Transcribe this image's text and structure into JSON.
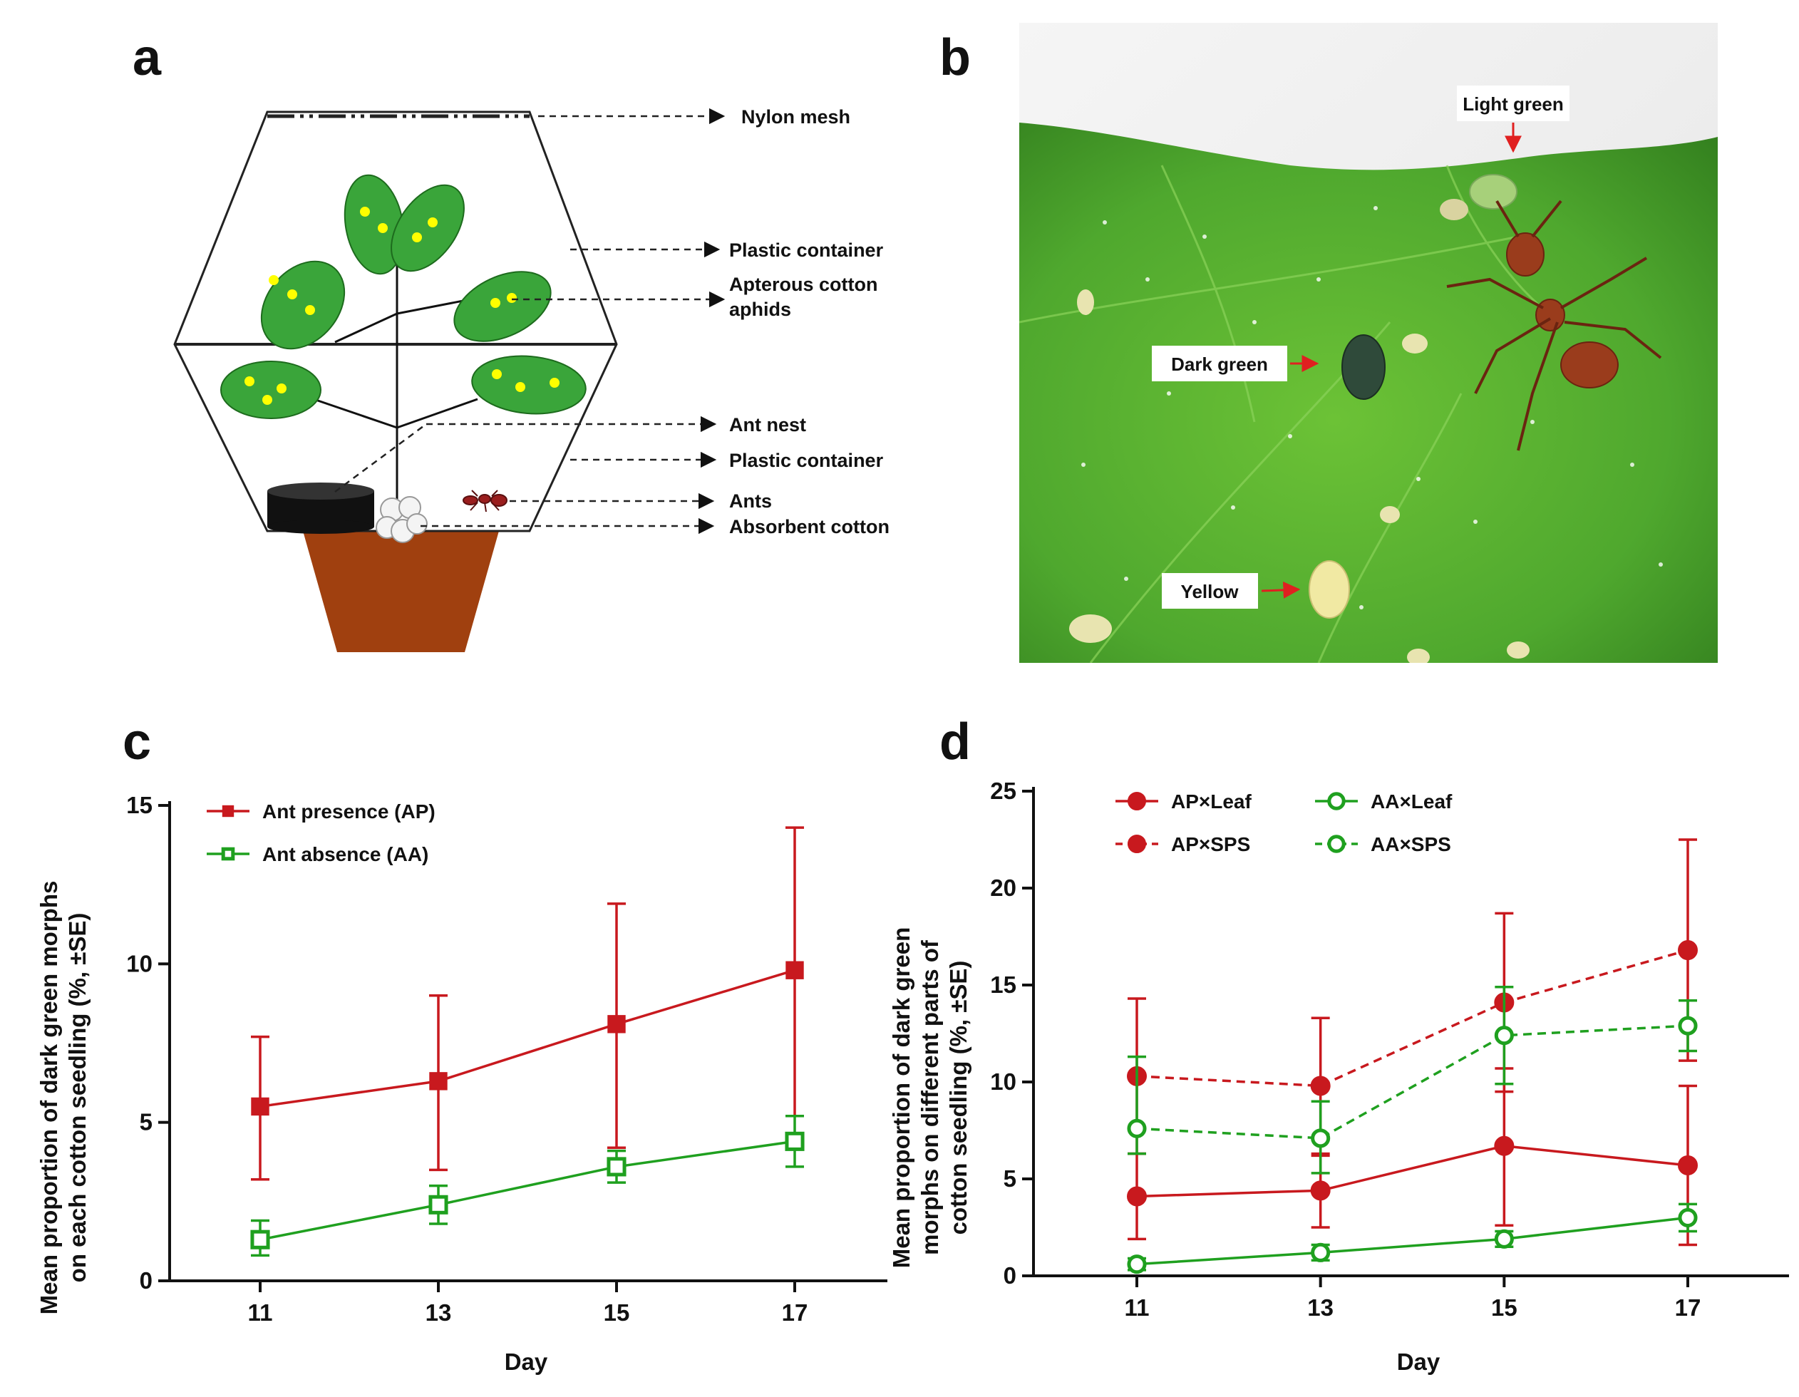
{
  "figure": {
    "panel_labels": {
      "a": "a",
      "b": "b",
      "c": "c",
      "d": "d"
    },
    "panel_a": {
      "labels": {
        "nylon_mesh": "Nylon mesh",
        "plastic_container_top": "Plastic container",
        "aphids_line1": "Apterous cotton",
        "aphids_line2": "aphids",
        "ant_nest": "Ant nest",
        "plastic_container_bottom": "Plastic container",
        "ants": "Ants",
        "absorbent_cotton": "Absorbent cotton"
      },
      "colors": {
        "leaf": "#3aa53a",
        "aphid": "#ffff00",
        "pot": "#a0400f",
        "nest": "#111111"
      }
    },
    "panel_b": {
      "labels": {
        "light_green": "Light green",
        "dark_green": "Dark green",
        "yellow": "Yellow"
      },
      "colors": {
        "leaf": "#4fa82e",
        "arrow": "#e02020"
      }
    }
  },
  "chart_data": [
    {
      "panel": "c",
      "type": "line",
      "xlabel": "Day",
      "ylabel_line1": "Mean proportion of dark green morphs",
      "ylabel_line2": "on each cotton seedling (%, ±SE)",
      "categories": [
        11,
        13,
        15,
        17
      ],
      "ylim": [
        0,
        15
      ],
      "yticks": [
        0,
        5,
        10,
        15
      ],
      "legend_position": "top-left",
      "series": [
        {
          "name": "Ant presence (AP)",
          "color": "#c8191e",
          "marker": "filled-square",
          "dash": "solid",
          "values": [
            5.5,
            6.3,
            8.1,
            9.8
          ],
          "err_low": [
            3.2,
            3.5,
            4.2,
            5.2
          ],
          "err_high": [
            7.7,
            9.0,
            11.9,
            14.3
          ]
        },
        {
          "name": "Ant absence (AA)",
          "color": "#1fa01f",
          "marker": "open-square",
          "dash": "solid",
          "values": [
            1.3,
            2.4,
            3.6,
            4.4
          ],
          "err_low": [
            0.8,
            1.8,
            3.1,
            3.6
          ],
          "err_high": [
            1.9,
            3.0,
            4.1,
            5.2
          ]
        }
      ]
    },
    {
      "panel": "d",
      "type": "line",
      "xlabel": "Day",
      "ylabel_line1": "Mean proportion of dark green",
      "ylabel_line2": "morphs on different parts of",
      "ylabel_line3": "cotton seedling (%, ±SE)",
      "categories": [
        11,
        13,
        15,
        17
      ],
      "ylim": [
        0,
        25
      ],
      "yticks": [
        0,
        5,
        10,
        15,
        20,
        25
      ],
      "legend_position": "top-left",
      "series": [
        {
          "name": "AP×Leaf",
          "color": "#c8191e",
          "marker": "filled-circle",
          "dash": "solid",
          "values": [
            4.1,
            4.4,
            6.7,
            5.7
          ],
          "err_low": [
            1.9,
            2.5,
            2.6,
            1.6
          ],
          "err_high": [
            6.3,
            6.3,
            10.7,
            9.8
          ]
        },
        {
          "name": "AP×SPS",
          "color": "#c8191e",
          "marker": "filled-circle",
          "dash": "dashed",
          "values": [
            10.3,
            9.8,
            14.1,
            16.8
          ],
          "err_low": [
            6.3,
            6.2,
            9.5,
            11.1
          ],
          "err_high": [
            14.3,
            13.3,
            18.7,
            22.5
          ]
        },
        {
          "name": "AA×Leaf",
          "color": "#1fa01f",
          "marker": "open-circle",
          "dash": "solid",
          "values": [
            0.6,
            1.2,
            1.9,
            3.0
          ],
          "err_low": [
            0.3,
            0.8,
            1.5,
            2.3
          ],
          "err_high": [
            0.9,
            1.6,
            2.3,
            3.7
          ]
        },
        {
          "name": "AA×SPS",
          "color": "#1fa01f",
          "marker": "open-circle",
          "dash": "dashed",
          "values": [
            7.6,
            7.1,
            12.4,
            12.9
          ],
          "err_low": [
            6.3,
            5.3,
            9.9,
            11.6
          ],
          "err_high": [
            11.3,
            9.0,
            14.9,
            14.2
          ]
        }
      ]
    }
  ]
}
